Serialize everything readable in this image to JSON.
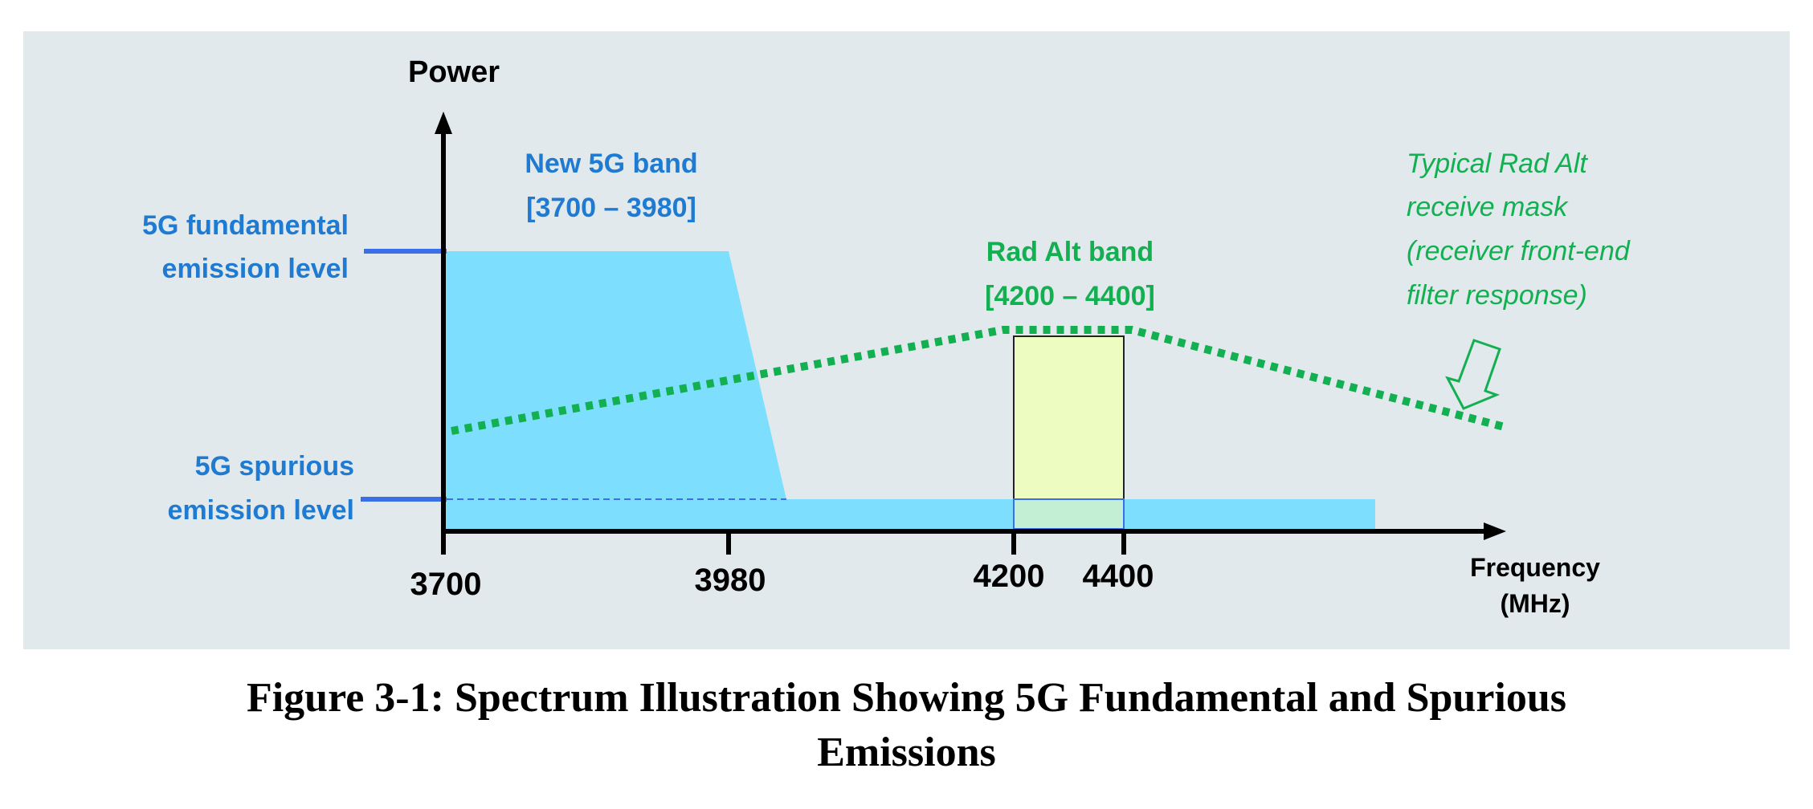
{
  "axes": {
    "y_label": "Power",
    "x_label_line1": "Frequency",
    "x_label_line2": "(MHz)"
  },
  "ticks": [
    "3700",
    "3980",
    "4200",
    "4400"
  ],
  "levels": {
    "fundamental_line1": "5G fundamental",
    "fundamental_line2": "emission level",
    "spurious_line1": "5G spurious",
    "spurious_line2": "emission level"
  },
  "bands": {
    "new_5g_line1": "New 5G band",
    "new_5g_line2": "[3700 – 3980]",
    "rad_alt_line1": "Rad Alt band",
    "rad_alt_line2": "[4200 – 4400]"
  },
  "mask_note": {
    "line1": "Typical Rad Alt",
    "line2": "receive mask",
    "line3": "(receiver front-end",
    "line4": "filter response)"
  },
  "caption": {
    "line1": "Figure 3-1: Spectrum Illustration Showing 5G Fundamental and Spurious",
    "line2": "Emissions"
  },
  "colors": {
    "background": "#e2e9ed",
    "emission_fill": "#7ddffd",
    "level_marker": "#3a6fe8",
    "blue_text": "#1f7bd1",
    "green": "#12b050",
    "rad_alt_fill": "#edfcc0"
  }
}
